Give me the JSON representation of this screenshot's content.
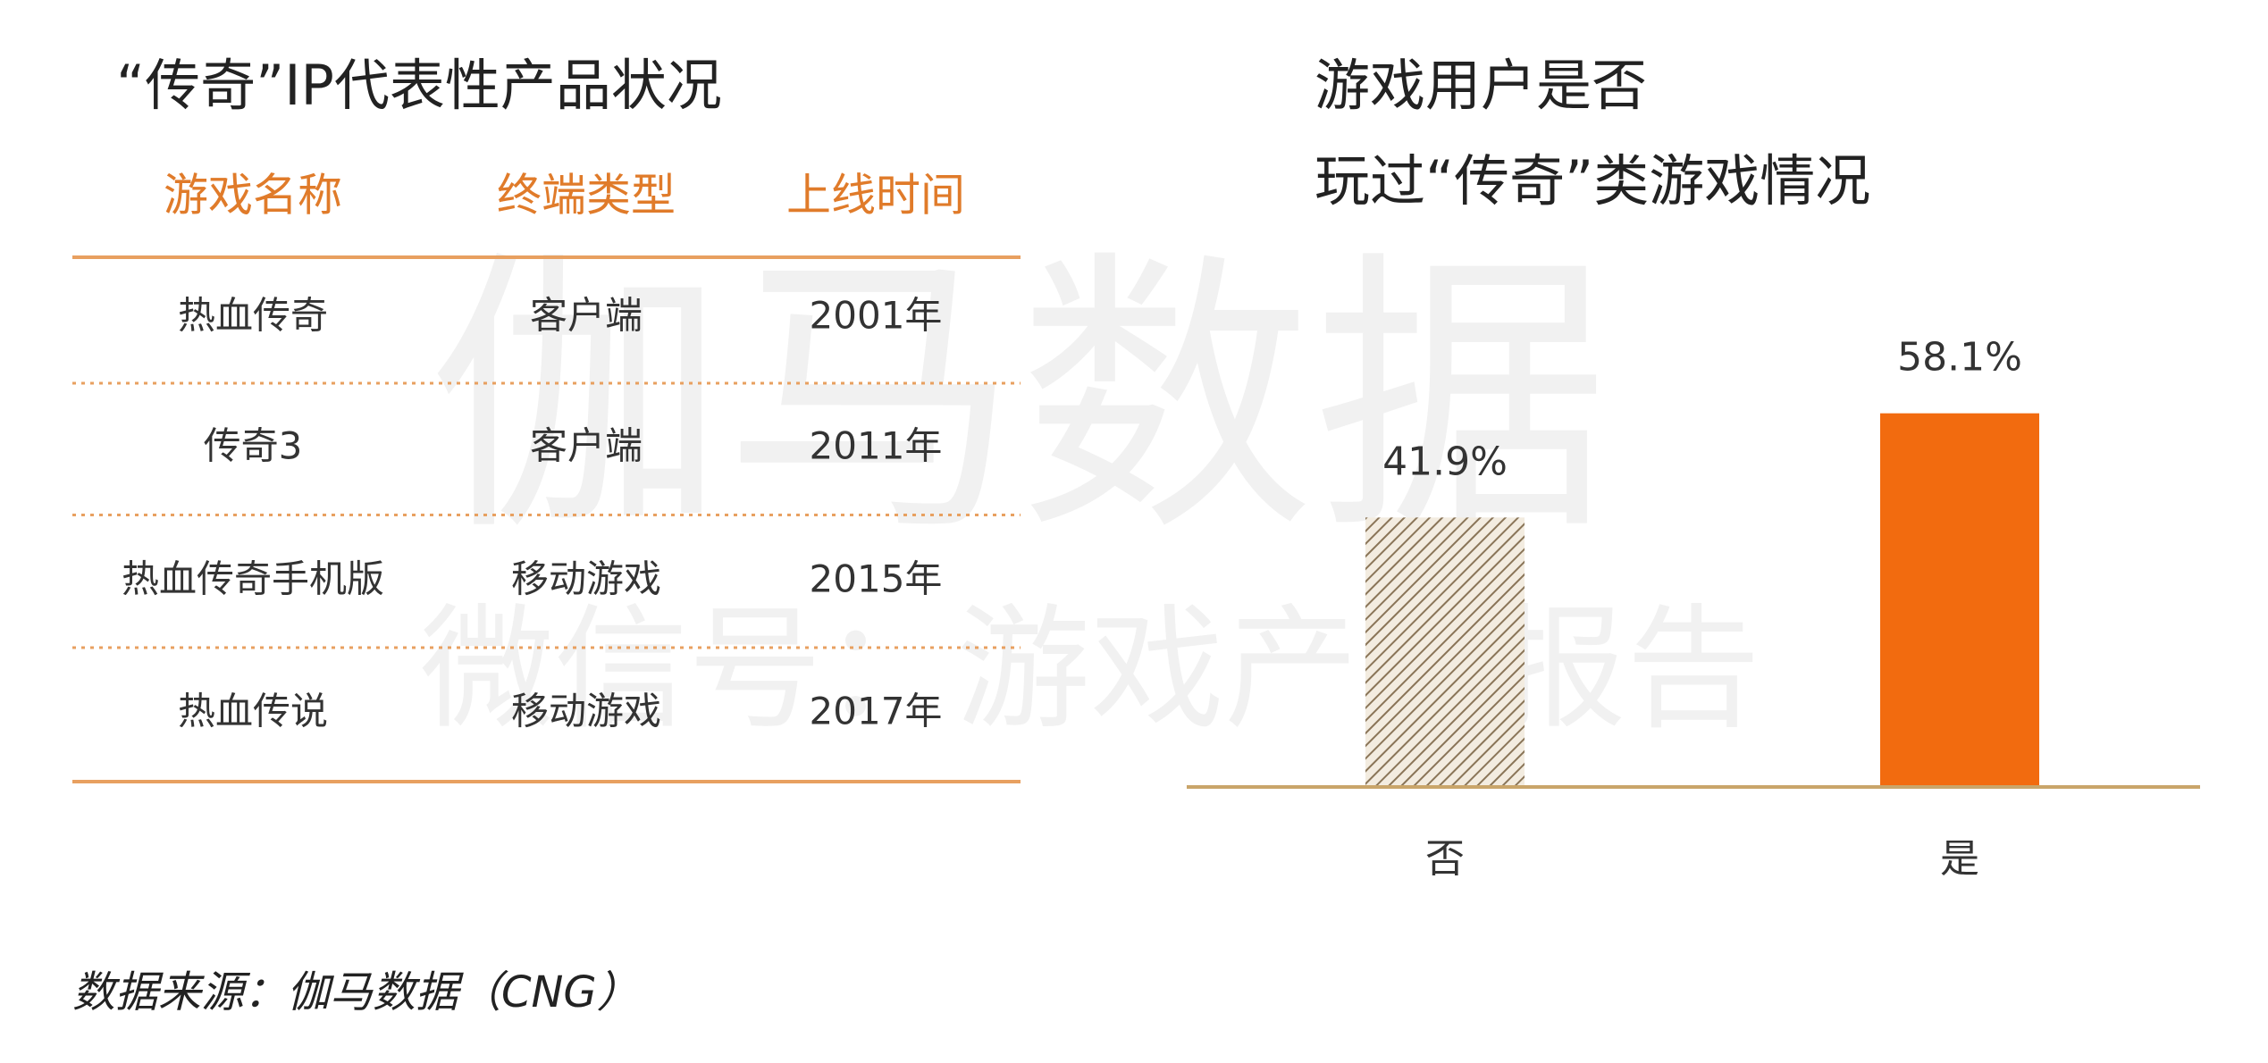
{
  "watermark": [
    "伽马数据",
    "微信号：游戏产业报告"
  ],
  "table": {
    "title": "“传奇”IP代表性产品状况",
    "header": [
      "游戏名称",
      "终端类型",
      "上线时间"
    ],
    "rows": [
      [
        "热血传奇",
        "客户端",
        "2001年"
      ],
      [
        "传奇3",
        "客户端",
        "2011年"
      ],
      [
        "热血传奇手机版",
        "移动游戏",
        "2015年"
      ],
      [
        "热血传说",
        "移动游戏",
        "2017年"
      ]
    ]
  },
  "chart_data": {
    "type": "bar",
    "title": [
      "游戏用户是否",
      "玩过“传奇”类游戏情况"
    ],
    "categories": [
      "否",
      "是"
    ],
    "values": [
      41.9,
      58.1
    ],
    "value_labels": [
      "41.9%",
      "58.1%"
    ],
    "colors": [
      "#8a7558",
      "#f26b0f"
    ],
    "patterns": [
      "hatch",
      "solid"
    ],
    "ylim": [
      0,
      100
    ]
  },
  "source": "数据来源：伽马数据（CNG）"
}
